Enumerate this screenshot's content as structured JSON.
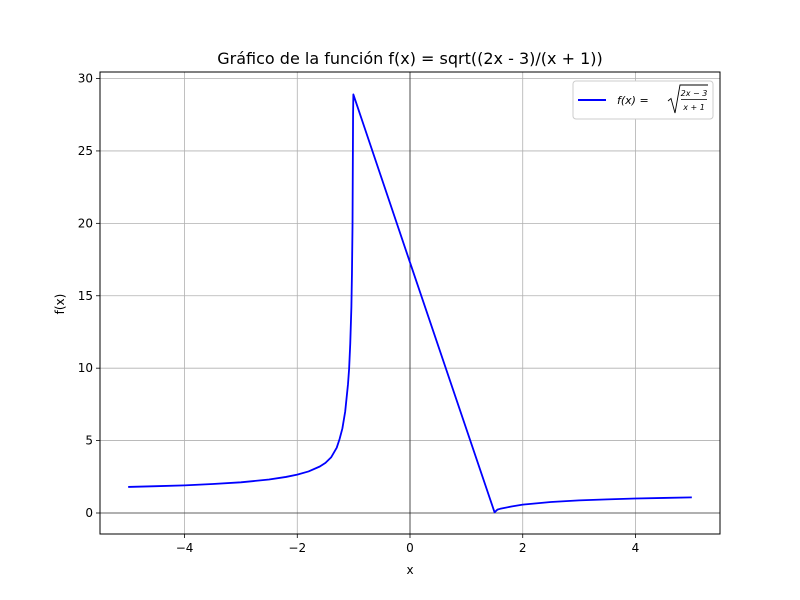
{
  "chart_data": {
    "type": "line",
    "title": "Gráfico de la función f(x) = sqrt((2x - 3)/(x + 1))",
    "xlabel": "x",
    "ylabel": "f(x)",
    "xlim": [
      -5.5,
      5.5
    ],
    "ylim": [
      -1.45,
      30.45
    ],
    "grid": true,
    "reference_lines": {
      "x": 0,
      "y": 0
    },
    "legend_position": "top-right",
    "x_ticks": [
      -4,
      -2,
      0,
      2,
      4
    ],
    "x_tick_labels": [
      "−4",
      "−2",
      "0",
      "2",
      "4"
    ],
    "y_ticks": [
      0,
      5,
      10,
      15,
      20,
      25,
      30
    ],
    "y_tick_labels": [
      "0",
      "5",
      "10",
      "15",
      "20",
      "25",
      "30"
    ],
    "series": [
      {
        "name": "f(x) = √((2x−3)/(x+1))",
        "legend": {
          "lhs": "f(x) = ",
          "numerator": "2x − 3",
          "denominator": "x + 1"
        },
        "color": "#0000ff",
        "points": [
          [
            -5,
            1.8
          ],
          [
            -4.5,
            1.85
          ],
          [
            -4,
            1.91
          ],
          [
            -3.5,
            2.0
          ],
          [
            -3,
            2.12
          ],
          [
            -2.5,
            2.31
          ],
          [
            -2.2,
            2.49
          ],
          [
            -2,
            2.65
          ],
          [
            -1.8,
            2.87
          ],
          [
            -1.6,
            3.21
          ],
          [
            -1.5,
            3.46
          ],
          [
            -1.4,
            3.84
          ],
          [
            -1.3,
            4.51
          ],
          [
            -1.25,
            5.1
          ],
          [
            -1.2,
            5.83
          ],
          [
            -1.15,
            7.0
          ],
          [
            -1.1,
            8.9
          ],
          [
            -1.08,
            9.98
          ],
          [
            -1.06,
            11.7
          ],
          [
            -1.04,
            14.2
          ],
          [
            -1.03,
            16.5
          ],
          [
            -1.02,
            19.8
          ],
          [
            -1.01,
            27.5
          ],
          [
            -1.005,
            28.9
          ],
          [
            0,
            17.3
          ],
          [
            1.5,
            0.05
          ],
          [
            1.55,
            0.23
          ],
          [
            1.6,
            0.29
          ],
          [
            1.8,
            0.45
          ],
          [
            2,
            0.58
          ],
          [
            2.5,
            0.76
          ],
          [
            3,
            0.87
          ],
          [
            3.5,
            0.94
          ],
          [
            4,
            1.0
          ],
          [
            4.5,
            1.04
          ],
          [
            5,
            1.08
          ]
        ]
      }
    ]
  }
}
